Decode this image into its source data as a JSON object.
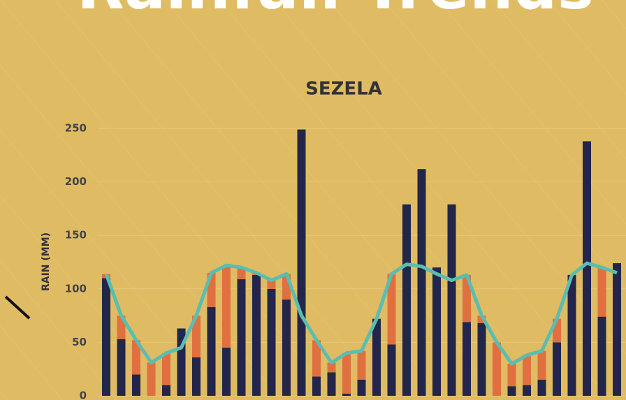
{
  "slide_title": "Rainfall Trends",
  "chart_data": {
    "type": "bar",
    "stacked": true,
    "title": "SEZELA",
    "y_label": "RAIN (MM)",
    "ylim": [
      0,
      250
    ],
    "yticks": [
      0,
      50,
      100,
      150,
      200,
      250
    ],
    "grid": true,
    "series": [
      {
        "color": "#23264a",
        "values": [
          110,
          53,
          20,
          0,
          10,
          63,
          36,
          83,
          45,
          109,
          113,
          100,
          90,
          249,
          18,
          22,
          2,
          15,
          72,
          48,
          179,
          212,
          120,
          179,
          69,
          68,
          0,
          9,
          10,
          15,
          50,
          113,
          238,
          74,
          124
        ]
      },
      {
        "color": "#e0703f",
        "values": [
          4,
          22,
          32,
          31,
          30,
          0,
          39,
          32,
          77,
          11,
          2,
          8,
          24,
          0,
          34,
          9,
          38,
          27,
          0,
          66,
          0,
          0,
          0,
          0,
          44,
          7,
          50,
          21,
          28,
          27,
          22,
          0,
          0,
          46,
          0
        ]
      },
      {
        "color": "#5bbdb0",
        "kind": "line",
        "values": [
          114,
          75,
          52,
          31,
          40,
          45,
          75,
          115,
          122,
          120,
          115,
          108,
          114,
          75,
          52,
          31,
          40,
          42,
          72,
          114,
          123,
          121,
          114,
          108,
          113,
          75,
          50,
          30,
          38,
          42,
          72,
          113,
          124,
          120,
          115
        ]
      }
    ]
  }
}
